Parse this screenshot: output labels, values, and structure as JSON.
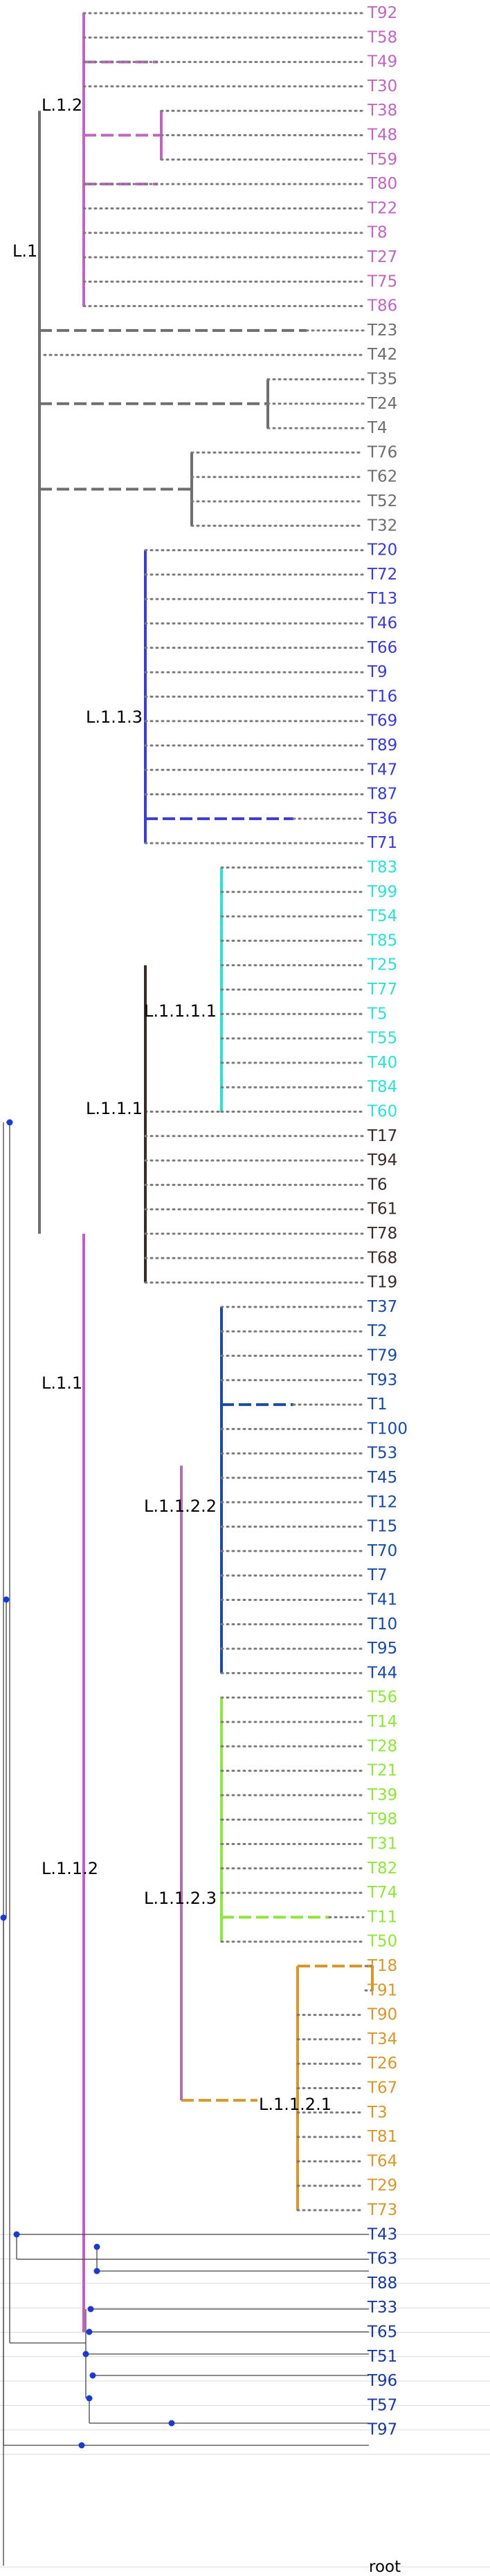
{
  "colors": {
    "L1_2": "#c066c0",
    "L1": "#6e6e6e",
    "L1_1": "#c060c0",
    "L1_1_3": "#3a3ad4",
    "L1_1_1": "#3a2a2a",
    "L1_1_1_1": "#2ee0d4",
    "L1_1_2": "#b070b0",
    "L1_1_2_2": "#1a4aa8",
    "L1_1_2_3": "#8ee63a",
    "L1_1_2_1": "#d9962a",
    "navy": "#1a3aa0",
    "dot": "#7a7a7a",
    "node_marker": "#1a3ad0"
  },
  "clades": {
    "L1": "L.1",
    "L1_2": "L.1.2",
    "L1_1": "L.1.1",
    "L1_1_3": "L.1.1.3",
    "L1_1_1": "L.1.1.1",
    "L1_1_1_1": "L.1.1.1.1",
    "L1_1_2": "L.1.1.2",
    "L1_1_2_2": "L.1.1.2.2",
    "L1_1_2_3": "L.1.1.2.3",
    "L1_1_2_1": "L.1.1.2.1"
  },
  "leaves": [
    {
      "label": "T92",
      "color": "#c066c0"
    },
    {
      "label": "T58",
      "color": "#c066c0"
    },
    {
      "label": "T49",
      "color": "#c066c0"
    },
    {
      "label": "T30",
      "color": "#c066c0"
    },
    {
      "label": "T38",
      "color": "#c066c0"
    },
    {
      "label": "T48",
      "color": "#c066c0"
    },
    {
      "label": "T59",
      "color": "#c066c0"
    },
    {
      "label": "T80",
      "color": "#c066c0"
    },
    {
      "label": "T22",
      "color": "#c066c0"
    },
    {
      "label": "T8",
      "color": "#c066c0"
    },
    {
      "label": "T27",
      "color": "#c066c0"
    },
    {
      "label": "T75",
      "color": "#c066c0"
    },
    {
      "label": "T86",
      "color": "#c066c0"
    },
    {
      "label": "T23",
      "color": "#6e6e6e"
    },
    {
      "label": "T42",
      "color": "#6e6e6e"
    },
    {
      "label": "T35",
      "color": "#6e6e6e"
    },
    {
      "label": "T24",
      "color": "#6e6e6e"
    },
    {
      "label": "T4",
      "color": "#6e6e6e"
    },
    {
      "label": "T76",
      "color": "#6e6e6e"
    },
    {
      "label": "T62",
      "color": "#6e6e6e"
    },
    {
      "label": "T52",
      "color": "#6e6e6e"
    },
    {
      "label": "T32",
      "color": "#6e6e6e"
    },
    {
      "label": "T20",
      "color": "#3a3ad4"
    },
    {
      "label": "T72",
      "color": "#3a3ad4"
    },
    {
      "label": "T13",
      "color": "#3a3ad4"
    },
    {
      "label": "T46",
      "color": "#3a3ad4"
    },
    {
      "label": "T66",
      "color": "#3a3ad4"
    },
    {
      "label": "T9",
      "color": "#3a3ad4"
    },
    {
      "label": "T16",
      "color": "#3a3ad4"
    },
    {
      "label": "T69",
      "color": "#3a3ad4"
    },
    {
      "label": "T89",
      "color": "#3a3ad4"
    },
    {
      "label": "T47",
      "color": "#3a3ad4"
    },
    {
      "label": "T87",
      "color": "#3a3ad4"
    },
    {
      "label": "T36",
      "color": "#3a3ad4"
    },
    {
      "label": "T71",
      "color": "#3a3ad4"
    },
    {
      "label": "T83",
      "color": "#2ee0d4"
    },
    {
      "label": "T99",
      "color": "#2ee0d4"
    },
    {
      "label": "T54",
      "color": "#2ee0d4"
    },
    {
      "label": "T85",
      "color": "#2ee0d4"
    },
    {
      "label": "T25",
      "color": "#2ee0d4"
    },
    {
      "label": "T77",
      "color": "#2ee0d4"
    },
    {
      "label": "T5",
      "color": "#2ee0d4"
    },
    {
      "label": "T55",
      "color": "#2ee0d4"
    },
    {
      "label": "T40",
      "color": "#2ee0d4"
    },
    {
      "label": "T84",
      "color": "#2ee0d4"
    },
    {
      "label": "T60",
      "color": "#2ee0d4"
    },
    {
      "label": "T17",
      "color": "#3a2a2a"
    },
    {
      "label": "T94",
      "color": "#3a2a2a"
    },
    {
      "label": "T6",
      "color": "#3a2a2a"
    },
    {
      "label": "T61",
      "color": "#3a2a2a"
    },
    {
      "label": "T78",
      "color": "#3a2a2a"
    },
    {
      "label": "T68",
      "color": "#3a2a2a"
    },
    {
      "label": "T19",
      "color": "#3a2a2a"
    },
    {
      "label": "T37",
      "color": "#1a4aa8"
    },
    {
      "label": "T2",
      "color": "#1a4aa8"
    },
    {
      "label": "T79",
      "color": "#1a4aa8"
    },
    {
      "label": "T93",
      "color": "#1a4aa8"
    },
    {
      "label": "T1",
      "color": "#1a4aa8"
    },
    {
      "label": "T100",
      "color": "#1a4aa8"
    },
    {
      "label": "T53",
      "color": "#1a4aa8"
    },
    {
      "label": "T45",
      "color": "#1a4aa8"
    },
    {
      "label": "T12",
      "color": "#1a4aa8"
    },
    {
      "label": "T15",
      "color": "#1a4aa8"
    },
    {
      "label": "T70",
      "color": "#1a4aa8"
    },
    {
      "label": "T7",
      "color": "#1a4aa8"
    },
    {
      "label": "T41",
      "color": "#1a4aa8"
    },
    {
      "label": "T10",
      "color": "#1a4aa8"
    },
    {
      "label": "T95",
      "color": "#1a4aa8"
    },
    {
      "label": "T44",
      "color": "#1a4aa8"
    },
    {
      "label": "T56",
      "color": "#8ee63a"
    },
    {
      "label": "T14",
      "color": "#8ee63a"
    },
    {
      "label": "T28",
      "color": "#8ee63a"
    },
    {
      "label": "T21",
      "color": "#8ee63a"
    },
    {
      "label": "T39",
      "color": "#8ee63a"
    },
    {
      "label": "T98",
      "color": "#8ee63a"
    },
    {
      "label": "T31",
      "color": "#8ee63a"
    },
    {
      "label": "T82",
      "color": "#8ee63a"
    },
    {
      "label": "T74",
      "color": "#8ee63a"
    },
    {
      "label": "T11",
      "color": "#8ee63a"
    },
    {
      "label": "T50",
      "color": "#8ee63a"
    },
    {
      "label": "T18",
      "color": "#d9962a"
    },
    {
      "label": "T91",
      "color": "#d9962a"
    },
    {
      "label": "T90",
      "color": "#d9962a"
    },
    {
      "label": "T34",
      "color": "#d9962a"
    },
    {
      "label": "T26",
      "color": "#d9962a"
    },
    {
      "label": "T67",
      "color": "#d9962a"
    },
    {
      "label": "T3",
      "color": "#d9962a"
    },
    {
      "label": "T81",
      "color": "#d9962a"
    },
    {
      "label": "T64",
      "color": "#d9962a"
    },
    {
      "label": "T29",
      "color": "#d9962a"
    },
    {
      "label": "T73",
      "color": "#d9962a"
    },
    {
      "label": "T43",
      "color": "#1a3aa0"
    },
    {
      "label": "T63",
      "color": "#1a3aa0"
    },
    {
      "label": "T88",
      "color": "#1a3aa0"
    },
    {
      "label": "T33",
      "color": "#1a3aa0"
    },
    {
      "label": "T65",
      "color": "#1a3aa0"
    },
    {
      "label": "T51",
      "color": "#1a3aa0"
    },
    {
      "label": "T96",
      "color": "#1a3aa0"
    },
    {
      "label": "T57",
      "color": "#1a3aa0"
    },
    {
      "label": "T97",
      "color": "#1a3aa0"
    }
  ],
  "root_label": "root"
}
